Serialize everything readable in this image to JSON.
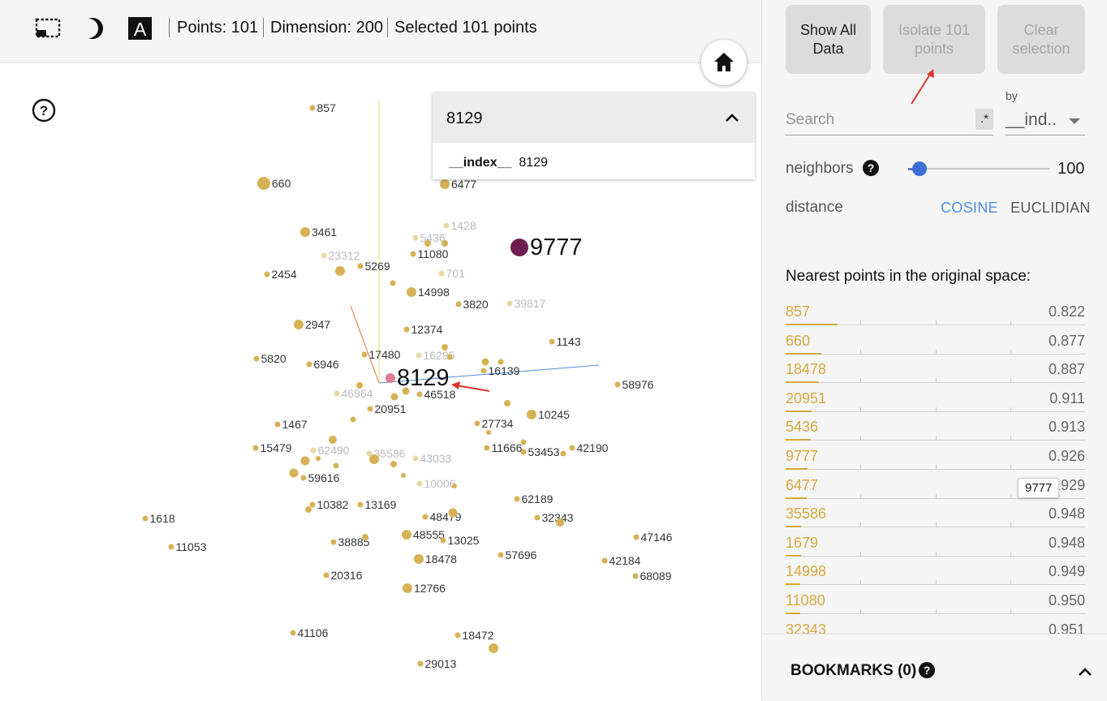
{
  "toolbar": {
    "points": "Points: 101",
    "dimension": "Dimension: 200",
    "selected": "Selected 101 points",
    "icons": [
      "selection-box-icon",
      "night-mode-icon",
      "label-toggle-icon"
    ]
  },
  "scatter": {
    "points": [
      {
        "label": "857",
        "size": "s"
      },
      {
        "label": "660",
        "size": "l"
      },
      {
        "label": "6477",
        "size": "m"
      },
      {
        "label": "1428",
        "size": "s",
        "faint": true
      },
      {
        "label": "9777",
        "size": "xl",
        "selected": true
      },
      {
        "label": "3461",
        "size": "m"
      },
      {
        "label": "5436",
        "size": "s",
        "faint": true
      },
      {
        "label": "23312",
        "size": "s",
        "faint": true
      },
      {
        "label": "11080",
        "size": "s"
      },
      {
        "label": "5269",
        "size": "s"
      },
      {
        "label": "2454",
        "size": "s"
      },
      {
        "label": "701",
        "size": "s",
        "faint": true
      },
      {
        "label": "14998",
        "size": "m"
      },
      {
        "label": "3820",
        "size": "s"
      },
      {
        "label": "39817",
        "size": "s",
        "faint": true
      },
      {
        "label": "2947",
        "size": "m"
      },
      {
        "label": "12374",
        "size": "s"
      },
      {
        "label": "1143",
        "size": "s"
      },
      {
        "label": "5820",
        "size": "s"
      },
      {
        "label": "17480",
        "size": "s"
      },
      {
        "label": "16295",
        "size": "s",
        "faint": true
      },
      {
        "label": "6946",
        "size": "s"
      },
      {
        "label": "16139",
        "size": "s"
      },
      {
        "label": "8129",
        "size": "m",
        "center": true,
        "big": true
      },
      {
        "label": "58976",
        "size": "s"
      },
      {
        "label": "46964",
        "size": "s",
        "faint": true
      },
      {
        "label": "46518",
        "size": "s"
      },
      {
        "label": "20951",
        "size": "s"
      },
      {
        "label": "10245",
        "size": "m"
      },
      {
        "label": "1467",
        "size": "s"
      },
      {
        "label": "27734",
        "size": "s"
      },
      {
        "label": "15479",
        "size": "s"
      },
      {
        "label": "62490",
        "size": "s",
        "faint": true
      },
      {
        "label": "35586",
        "size": "s",
        "faint": true
      },
      {
        "label": "43033",
        "size": "s",
        "faint": true
      },
      {
        "label": "11666",
        "size": "s"
      },
      {
        "label": "53453",
        "size": "s"
      },
      {
        "label": "42190",
        "size": "s"
      },
      {
        "label": "59616",
        "size": "s"
      },
      {
        "label": "10006",
        "size": "s",
        "faint": true
      },
      {
        "label": "62189",
        "size": "s"
      },
      {
        "label": "10382",
        "size": "s"
      },
      {
        "label": "13169",
        "size": "s"
      },
      {
        "label": "48479",
        "size": "s"
      },
      {
        "label": "32343",
        "size": "s"
      },
      {
        "label": "1618",
        "size": "s"
      },
      {
        "label": "48555",
        "size": "m"
      },
      {
        "label": "38885",
        "size": "s"
      },
      {
        "label": "13025",
        "size": "s"
      },
      {
        "label": "47146",
        "size": "s"
      },
      {
        "label": "11053",
        "size": "s"
      },
      {
        "label": "18478",
        "size": "m"
      },
      {
        "label": "57696",
        "size": "s"
      },
      {
        "label": "42184",
        "size": "s"
      },
      {
        "label": "68089",
        "size": "s"
      },
      {
        "label": "20316",
        "size": "s"
      },
      {
        "label": "12766",
        "size": "m"
      },
      {
        "label": "41106",
        "size": "s"
      },
      {
        "label": "18472",
        "size": "s"
      },
      {
        "label": "29013",
        "size": "s"
      }
    ],
    "popup": {
      "title": "8129",
      "field_key": "__index__",
      "field_value": "8129"
    },
    "icons": [
      "home-icon",
      "help-circle-icon"
    ]
  },
  "panel": {
    "buttons": {
      "show_all": "Show All Data",
      "isolate": "Isolate 101 points",
      "clear": "Clear selection"
    },
    "search": {
      "placeholder": "Search",
      "regex": ".*",
      "by_label": "by",
      "by_value": "__ind.."
    },
    "neighbors": {
      "label": "neighbors",
      "value": "100",
      "fraction": 0.04
    },
    "distance": {
      "label": "distance",
      "cosine": "COSINE",
      "euclidian": "EUCLIDIAN",
      "active": "COSINE"
    },
    "nearest": {
      "title": "Nearest points in the original space:",
      "items": [
        {
          "name": "857",
          "value": "0.822"
        },
        {
          "name": "660",
          "value": "0.877"
        },
        {
          "name": "18478",
          "value": "0.887"
        },
        {
          "name": "20951",
          "value": "0.911"
        },
        {
          "name": "5436",
          "value": "0.913"
        },
        {
          "name": "9777",
          "value": "0.926"
        },
        {
          "name": "6477",
          "value": "0.929"
        },
        {
          "name": "35586",
          "value": "0.948"
        },
        {
          "name": "1679",
          "value": "0.948"
        },
        {
          "name": "14998",
          "value": "0.949"
        },
        {
          "name": "11080",
          "value": "0.950"
        },
        {
          "name": "32343",
          "value": "0.951"
        }
      ],
      "tooltip": "9777"
    },
    "bookmarks": {
      "title": "BOOKMARKS (0)"
    }
  },
  "colors": {
    "point": "#d6b256",
    "selected_point": "#6e1f4f",
    "accent_blue": "#4a90e2",
    "neighbor_text": "#d6a83e"
  }
}
